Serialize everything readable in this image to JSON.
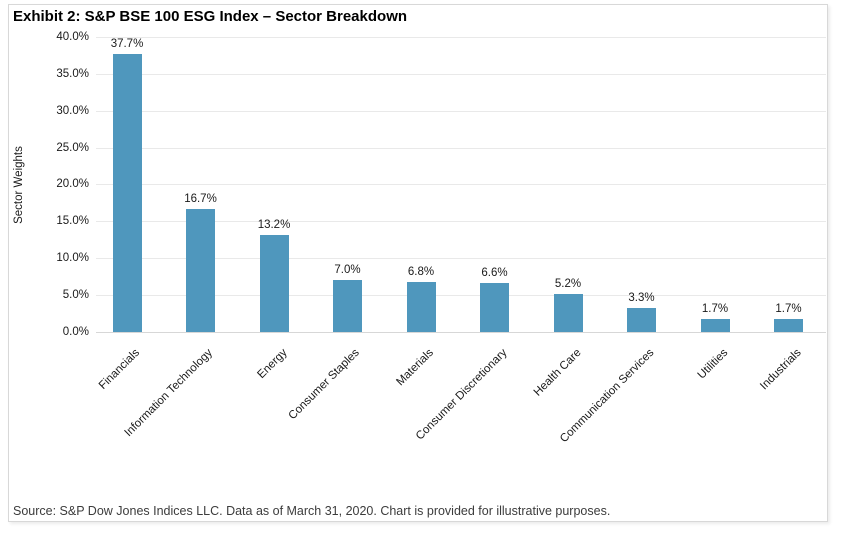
{
  "exhibit": {
    "title": "Exhibit 2: S&P BSE 100 ESG Index – Sector Breakdown",
    "source_note": "Source: S&P Dow Jones Indices LLC. Data as of March 31, 2020. Chart is provided for illustrative purposes."
  },
  "chart_data": {
    "type": "bar",
    "title": "Exhibit 2: S&P BSE 100 ESG Index – Sector Breakdown",
    "xlabel": "",
    "ylabel": "Sector Weights",
    "categories": [
      "Financials",
      "Information Technology",
      "Energy",
      "Consumer Staples",
      "Materials",
      "Consumer Discretionary",
      "Health Care",
      "Communication Services",
      "Utilities",
      "Industrials"
    ],
    "values": [
      37.7,
      16.7,
      13.2,
      7.0,
      6.8,
      6.6,
      5.2,
      3.3,
      1.7,
      1.7
    ],
    "data_labels": [
      "37.7%",
      "16.7%",
      "13.2%",
      "7.0%",
      "6.8%",
      "6.6%",
      "5.2%",
      "3.3%",
      "1.7%",
      "1.7%"
    ],
    "ylim": [
      0,
      40
    ],
    "ytick_step": 5,
    "ytick_labels": [
      "0.0%",
      "5.0%",
      "10.0%",
      "15.0%",
      "20.0%",
      "25.0%",
      "30.0%",
      "35.0%",
      "40.0%"
    ],
    "grid": "horizontal",
    "legend": "none",
    "bar_color": "#4F97BD"
  },
  "colors": {
    "bar": "#4F97BD",
    "gridline": "#E9E9E9",
    "axis_line": "#D7D7D7",
    "frame_border": "#D8D8D8",
    "title_text": "#000000",
    "label_text": "#1A1A1A",
    "source_text": "#3C3C3C"
  }
}
